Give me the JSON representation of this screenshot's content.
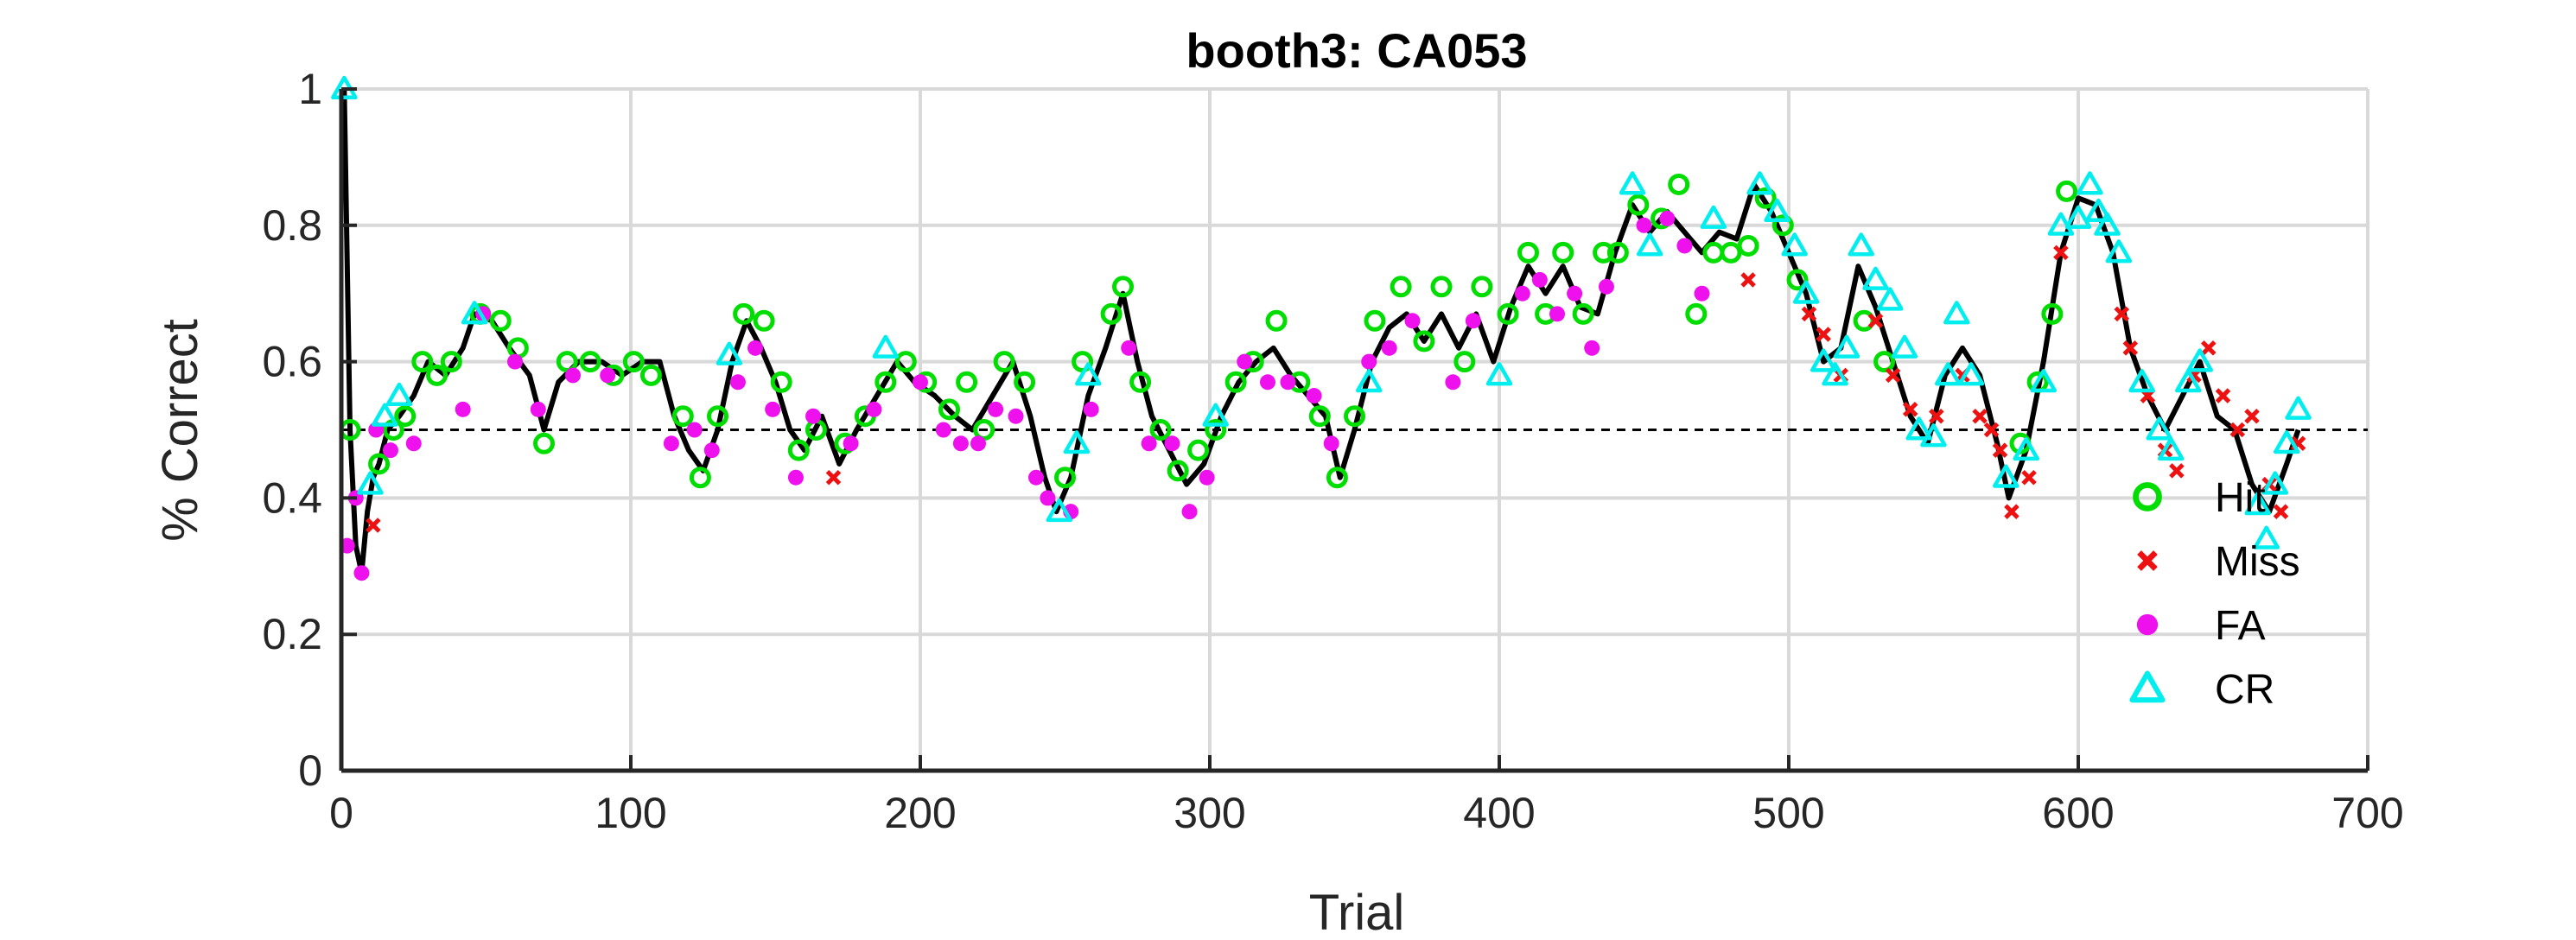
{
  "chart_data": {
    "type": "scatter",
    "title": "booth3: CA053",
    "xlabel": "Trial",
    "ylabel": "% Correct",
    "xlim": [
      0,
      700
    ],
    "ylim": [
      0,
      1
    ],
    "xticks": [
      0,
      100,
      200,
      300,
      400,
      500,
      600,
      700
    ],
    "yticks": [
      0,
      0.2,
      0.4,
      0.6,
      0.8,
      1
    ],
    "ytick_labels": [
      "0",
      "0.2",
      "0.4",
      "0.6",
      "0.8",
      "1"
    ],
    "grid": true,
    "chance_line": 0.5,
    "legend_position": "right",
    "trace": [
      [
        1,
        1.0
      ],
      [
        3,
        0.5
      ],
      [
        5,
        0.33
      ],
      [
        7,
        0.29
      ],
      [
        9,
        0.38
      ],
      [
        11,
        0.43
      ],
      [
        13,
        0.45
      ],
      [
        16,
        0.5
      ],
      [
        20,
        0.52
      ],
      [
        25,
        0.55
      ],
      [
        30,
        0.6
      ],
      [
        36,
        0.58
      ],
      [
        42,
        0.62
      ],
      [
        46,
        0.67
      ],
      [
        52,
        0.66
      ],
      [
        58,
        0.62
      ],
      [
        65,
        0.58
      ],
      [
        70,
        0.5
      ],
      [
        75,
        0.57
      ],
      [
        82,
        0.6
      ],
      [
        90,
        0.6
      ],
      [
        97,
        0.58
      ],
      [
        104,
        0.6
      ],
      [
        110,
        0.6
      ],
      [
        115,
        0.52
      ],
      [
        120,
        0.47
      ],
      [
        125,
        0.44
      ],
      [
        130,
        0.5
      ],
      [
        135,
        0.6
      ],
      [
        140,
        0.66
      ],
      [
        145,
        0.62
      ],
      [
        150,
        0.57
      ],
      [
        155,
        0.5
      ],
      [
        160,
        0.47
      ],
      [
        166,
        0.52
      ],
      [
        172,
        0.45
      ],
      [
        178,
        0.5
      ],
      [
        185,
        0.55
      ],
      [
        192,
        0.6
      ],
      [
        198,
        0.57
      ],
      [
        205,
        0.55
      ],
      [
        212,
        0.52
      ],
      [
        218,
        0.5
      ],
      [
        225,
        0.55
      ],
      [
        232,
        0.6
      ],
      [
        238,
        0.52
      ],
      [
        243,
        0.43
      ],
      [
        247,
        0.38
      ],
      [
        252,
        0.43
      ],
      [
        258,
        0.55
      ],
      [
        264,
        0.62
      ],
      [
        270,
        0.7
      ],
      [
        275,
        0.6
      ],
      [
        280,
        0.52
      ],
      [
        286,
        0.47
      ],
      [
        292,
        0.42
      ],
      [
        298,
        0.45
      ],
      [
        304,
        0.52
      ],
      [
        310,
        0.57
      ],
      [
        316,
        0.6
      ],
      [
        322,
        0.62
      ],
      [
        328,
        0.58
      ],
      [
        334,
        0.55
      ],
      [
        340,
        0.52
      ],
      [
        345,
        0.43
      ],
      [
        350,
        0.5
      ],
      [
        356,
        0.6
      ],
      [
        362,
        0.65
      ],
      [
        368,
        0.67
      ],
      [
        374,
        0.63
      ],
      [
        380,
        0.67
      ],
      [
        386,
        0.62
      ],
      [
        392,
        0.67
      ],
      [
        398,
        0.6
      ],
      [
        404,
        0.68
      ],
      [
        410,
        0.74
      ],
      [
        416,
        0.7
      ],
      [
        422,
        0.74
      ],
      [
        428,
        0.68
      ],
      [
        434,
        0.67
      ],
      [
        440,
        0.76
      ],
      [
        446,
        0.83
      ],
      [
        452,
        0.79
      ],
      [
        458,
        0.82
      ],
      [
        464,
        0.79
      ],
      [
        470,
        0.76
      ],
      [
        476,
        0.79
      ],
      [
        482,
        0.78
      ],
      [
        488,
        0.86
      ],
      [
        494,
        0.82
      ],
      [
        500,
        0.76
      ],
      [
        506,
        0.7
      ],
      [
        512,
        0.6
      ],
      [
        518,
        0.62
      ],
      [
        524,
        0.74
      ],
      [
        530,
        0.68
      ],
      [
        536,
        0.6
      ],
      [
        542,
        0.52
      ],
      [
        548,
        0.48
      ],
      [
        554,
        0.58
      ],
      [
        560,
        0.62
      ],
      [
        566,
        0.58
      ],
      [
        572,
        0.48
      ],
      [
        576,
        0.4
      ],
      [
        582,
        0.47
      ],
      [
        588,
        0.6
      ],
      [
        594,
        0.76
      ],
      [
        600,
        0.84
      ],
      [
        606,
        0.83
      ],
      [
        612,
        0.76
      ],
      [
        618,
        0.62
      ],
      [
        624,
        0.55
      ],
      [
        630,
        0.5
      ],
      [
        636,
        0.55
      ],
      [
        642,
        0.6
      ],
      [
        648,
        0.52
      ],
      [
        654,
        0.5
      ],
      [
        660,
        0.42
      ],
      [
        666,
        0.38
      ],
      [
        672,
        0.45
      ],
      [
        676,
        0.5
      ]
    ],
    "series": [
      {
        "name": "Hit",
        "marker": "circle-open",
        "color": "#00dd00",
        "points": [
          [
            3,
            0.5
          ],
          [
            13,
            0.45
          ],
          [
            18,
            0.5
          ],
          [
            22,
            0.52
          ],
          [
            28,
            0.6
          ],
          [
            33,
            0.58
          ],
          [
            38,
            0.6
          ],
          [
            48,
            0.67
          ],
          [
            55,
            0.66
          ],
          [
            61,
            0.62
          ],
          [
            70,
            0.48
          ],
          [
            78,
            0.6
          ],
          [
            86,
            0.6
          ],
          [
            94,
            0.58
          ],
          [
            101,
            0.6
          ],
          [
            107,
            0.58
          ],
          [
            118,
            0.52
          ],
          [
            124,
            0.43
          ],
          [
            130,
            0.52
          ],
          [
            139,
            0.67
          ],
          [
            146,
            0.66
          ],
          [
            152,
            0.57
          ],
          [
            158,
            0.47
          ],
          [
            164,
            0.5
          ],
          [
            174,
            0.48
          ],
          [
            181,
            0.52
          ],
          [
            188,
            0.57
          ],
          [
            195,
            0.6
          ],
          [
            202,
            0.57
          ],
          [
            210,
            0.53
          ],
          [
            216,
            0.57
          ],
          [
            222,
            0.5
          ],
          [
            229,
            0.6
          ],
          [
            236,
            0.57
          ],
          [
            250,
            0.43
          ],
          [
            256,
            0.6
          ],
          [
            266,
            0.67
          ],
          [
            270,
            0.71
          ],
          [
            276,
            0.57
          ],
          [
            283,
            0.5
          ],
          [
            289,
            0.44
          ],
          [
            296,
            0.47
          ],
          [
            302,
            0.5
          ],
          [
            309,
            0.57
          ],
          [
            315,
            0.6
          ],
          [
            323,
            0.66
          ],
          [
            331,
            0.57
          ],
          [
            338,
            0.52
          ],
          [
            344,
            0.43
          ],
          [
            350,
            0.52
          ],
          [
            357,
            0.66
          ],
          [
            366,
            0.71
          ],
          [
            374,
            0.63
          ],
          [
            380,
            0.71
          ],
          [
            388,
            0.6
          ],
          [
            394,
            0.71
          ],
          [
            403,
            0.67
          ],
          [
            410,
            0.76
          ],
          [
            416,
            0.67
          ],
          [
            422,
            0.76
          ],
          [
            429,
            0.67
          ],
          [
            436,
            0.76
          ],
          [
            441,
            0.76
          ],
          [
            448,
            0.83
          ],
          [
            456,
            0.81
          ],
          [
            462,
            0.86
          ],
          [
            468,
            0.67
          ],
          [
            474,
            0.76
          ],
          [
            480,
            0.76
          ],
          [
            486,
            0.77
          ],
          [
            492,
            0.84
          ],
          [
            498,
            0.8
          ],
          [
            503,
            0.72
          ],
          [
            526,
            0.66
          ],
          [
            533,
            0.6
          ],
          [
            580,
            0.48
          ],
          [
            586,
            0.57
          ],
          [
            591,
            0.67
          ],
          [
            596,
            0.85
          ]
        ]
      },
      {
        "name": "Miss",
        "marker": "x",
        "color": "#ee1111",
        "points": [
          [
            11,
            0.36
          ],
          [
            170,
            0.43
          ],
          [
            486,
            0.72
          ],
          [
            507,
            0.67
          ],
          [
            512,
            0.64
          ],
          [
            518,
            0.58
          ],
          [
            530,
            0.66
          ],
          [
            536,
            0.58
          ],
          [
            542,
            0.53
          ],
          [
            551,
            0.52
          ],
          [
            560,
            0.58
          ],
          [
            566,
            0.52
          ],
          [
            570,
            0.5
          ],
          [
            573,
            0.47
          ],
          [
            577,
            0.38
          ],
          [
            583,
            0.43
          ],
          [
            594,
            0.76
          ],
          [
            615,
            0.67
          ],
          [
            618,
            0.62
          ],
          [
            624,
            0.55
          ],
          [
            630,
            0.47
          ],
          [
            634,
            0.44
          ],
          [
            640,
            0.58
          ],
          [
            645,
            0.62
          ],
          [
            650,
            0.55
          ],
          [
            655,
            0.5
          ],
          [
            660,
            0.52
          ],
          [
            666,
            0.42
          ],
          [
            670,
            0.38
          ],
          [
            676,
            0.48
          ]
        ]
      },
      {
        "name": "FA",
        "marker": "dot",
        "color": "#ee11ee",
        "points": [
          [
            2,
            0.33
          ],
          [
            5,
            0.4
          ],
          [
            7,
            0.29
          ],
          [
            12,
            0.5
          ],
          [
            17,
            0.47
          ],
          [
            25,
            0.48
          ],
          [
            42,
            0.53
          ],
          [
            49,
            0.67
          ],
          [
            60,
            0.6
          ],
          [
            68,
            0.53
          ],
          [
            80,
            0.58
          ],
          [
            92,
            0.58
          ],
          [
            114,
            0.48
          ],
          [
            122,
            0.5
          ],
          [
            128,
            0.47
          ],
          [
            137,
            0.57
          ],
          [
            143,
            0.62
          ],
          [
            149,
            0.53
          ],
          [
            157,
            0.43
          ],
          [
            163,
            0.52
          ],
          [
            176,
            0.48
          ],
          [
            184,
            0.53
          ],
          [
            200,
            0.57
          ],
          [
            208,
            0.5
          ],
          [
            214,
            0.48
          ],
          [
            220,
            0.48
          ],
          [
            226,
            0.53
          ],
          [
            233,
            0.52
          ],
          [
            240,
            0.43
          ],
          [
            244,
            0.4
          ],
          [
            252,
            0.38
          ],
          [
            259,
            0.53
          ],
          [
            272,
            0.62
          ],
          [
            279,
            0.48
          ],
          [
            287,
            0.48
          ],
          [
            293,
            0.38
          ],
          [
            299,
            0.43
          ],
          [
            312,
            0.6
          ],
          [
            320,
            0.57
          ],
          [
            327,
            0.57
          ],
          [
            336,
            0.55
          ],
          [
            342,
            0.48
          ],
          [
            355,
            0.6
          ],
          [
            362,
            0.62
          ],
          [
            370,
            0.66
          ],
          [
            384,
            0.57
          ],
          [
            391,
            0.66
          ],
          [
            408,
            0.7
          ],
          [
            414,
            0.72
          ],
          [
            420,
            0.67
          ],
          [
            426,
            0.7
          ],
          [
            432,
            0.62
          ],
          [
            437,
            0.71
          ],
          [
            450,
            0.8
          ],
          [
            458,
            0.81
          ],
          [
            464,
            0.77
          ],
          [
            470,
            0.7
          ]
        ]
      },
      {
        "name": "CR",
        "marker": "triangle-open",
        "color": "#00eeee",
        "points": [
          [
            1,
            1.0
          ],
          [
            10,
            0.42
          ],
          [
            15,
            0.52
          ],
          [
            20,
            0.55
          ],
          [
            46,
            0.67
          ],
          [
            134,
            0.61
          ],
          [
            188,
            0.62
          ],
          [
            248,
            0.38
          ],
          [
            254,
            0.48
          ],
          [
            258,
            0.58
          ],
          [
            302,
            0.52
          ],
          [
            355,
            0.57
          ],
          [
            400,
            0.58
          ],
          [
            446,
            0.86
          ],
          [
            452,
            0.77
          ],
          [
            474,
            0.81
          ],
          [
            490,
            0.86
          ],
          [
            496,
            0.82
          ],
          [
            502,
            0.77
          ],
          [
            506,
            0.7
          ],
          [
            512,
            0.6
          ],
          [
            516,
            0.58
          ],
          [
            520,
            0.62
          ],
          [
            525,
            0.77
          ],
          [
            530,
            0.72
          ],
          [
            535,
            0.69
          ],
          [
            540,
            0.62
          ],
          [
            545,
            0.5
          ],
          [
            550,
            0.49
          ],
          [
            555,
            0.58
          ],
          [
            558,
            0.67
          ],
          [
            563,
            0.58
          ],
          [
            575,
            0.43
          ],
          [
            582,
            0.47
          ],
          [
            588,
            0.57
          ],
          [
            594,
            0.8
          ],
          [
            600,
            0.81
          ],
          [
            604,
            0.86
          ],
          [
            607,
            0.82
          ],
          [
            610,
            0.8
          ],
          [
            614,
            0.76
          ],
          [
            622,
            0.57
          ],
          [
            628,
            0.5
          ],
          [
            632,
            0.47
          ],
          [
            638,
            0.57
          ],
          [
            642,
            0.6
          ],
          [
            662,
            0.39
          ],
          [
            665,
            0.34
          ],
          [
            668,
            0.42
          ],
          [
            672,
            0.48
          ],
          [
            676,
            0.53
          ]
        ]
      }
    ]
  }
}
